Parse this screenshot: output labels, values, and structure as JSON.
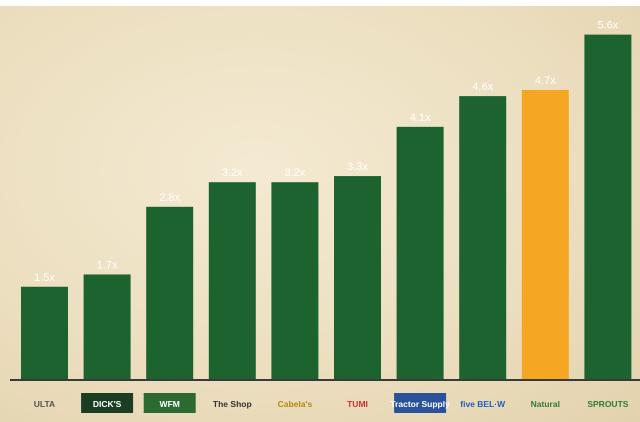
{
  "colors": {
    "bar": "#1d6330",
    "highlight": "#f5a623",
    "axis": "#3a3a3a",
    "label": "#ffffff"
  },
  "chart_data": {
    "type": "bar",
    "categories": [
      "ULTA",
      "DICK'S",
      "Whole Foods Market",
      "The Fresh Market",
      "Cabela's",
      "TUMI",
      "Tractor Supply",
      "Five Below",
      "Natural Grocers",
      "Sprouts"
    ],
    "values": [
      1.5,
      1.7,
      2.8,
      3.2,
      3.2,
      3.3,
      4.1,
      4.6,
      4.7,
      5.6
    ],
    "value_labels": [
      "1.5x",
      "1.7x",
      "2.8x",
      "3.2x",
      "3.2x",
      "3.3x",
      "4.1x",
      "4.6x",
      "4.7x",
      "5.6x"
    ],
    "highlight_index": 8,
    "ylim": [
      0,
      6.0
    ],
    "grid": false,
    "legend": "none"
  },
  "logos": [
    {
      "text": "ULTA",
      "color": "#555555",
      "icon": "ulta-logo"
    },
    {
      "text": "DICK'S",
      "color": "#ffffff",
      "bg": "#1a3d24",
      "icon": "dicks-logo"
    },
    {
      "text": "WFM",
      "color": "#ffffff",
      "bg": "#2d6a32",
      "icon": "whole-foods-logo"
    },
    {
      "text": "The Shop",
      "color": "#333333",
      "icon": "fresh-market-logo"
    },
    {
      "text": "Cabela's",
      "color": "#b8860b",
      "icon": "cabelas-logo"
    },
    {
      "text": "TUMI",
      "color": "#d32f2f",
      "icon": "tumi-logo"
    },
    {
      "text": "Tractor Supply",
      "color": "#ffffff",
      "bg": "#2a5298",
      "icon": "tractor-supply-logo"
    },
    {
      "text": "five BEL·W",
      "color": "#1f5fbf",
      "icon": "five-below-logo"
    },
    {
      "text": "Natural",
      "color": "#2e7d32",
      "icon": "natural-grocers-logo"
    },
    {
      "text": "SPROUTS",
      "color": "#2e7d32",
      "icon": "sprouts-logo"
    }
  ]
}
